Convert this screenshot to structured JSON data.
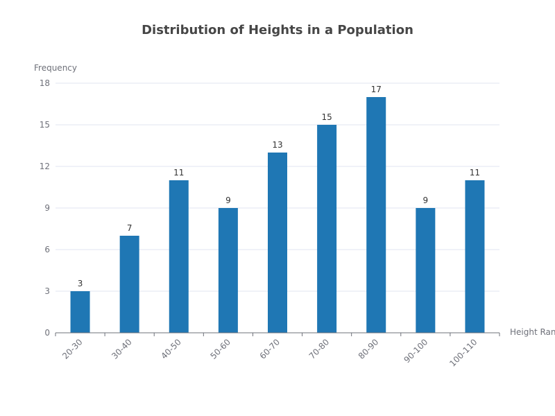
{
  "chart_data": {
    "type": "bar",
    "title": "Distribution of Heights in a Population",
    "xlabel": "Height Range",
    "ylabel": "Frequency",
    "categories": [
      "20-30",
      "30-40",
      "40-50",
      "50-60",
      "60-70",
      "70-80",
      "80-90",
      "90-100",
      "100-110"
    ],
    "values": [
      3,
      7,
      11,
      9,
      13,
      15,
      17,
      9,
      11
    ],
    "ylim": [
      0,
      18
    ],
    "yticks": [
      0,
      3,
      6,
      9,
      12,
      15,
      18
    ],
    "grid": true,
    "legend": "none",
    "bar_color": "#1f77b4",
    "data_labels": "top"
  }
}
